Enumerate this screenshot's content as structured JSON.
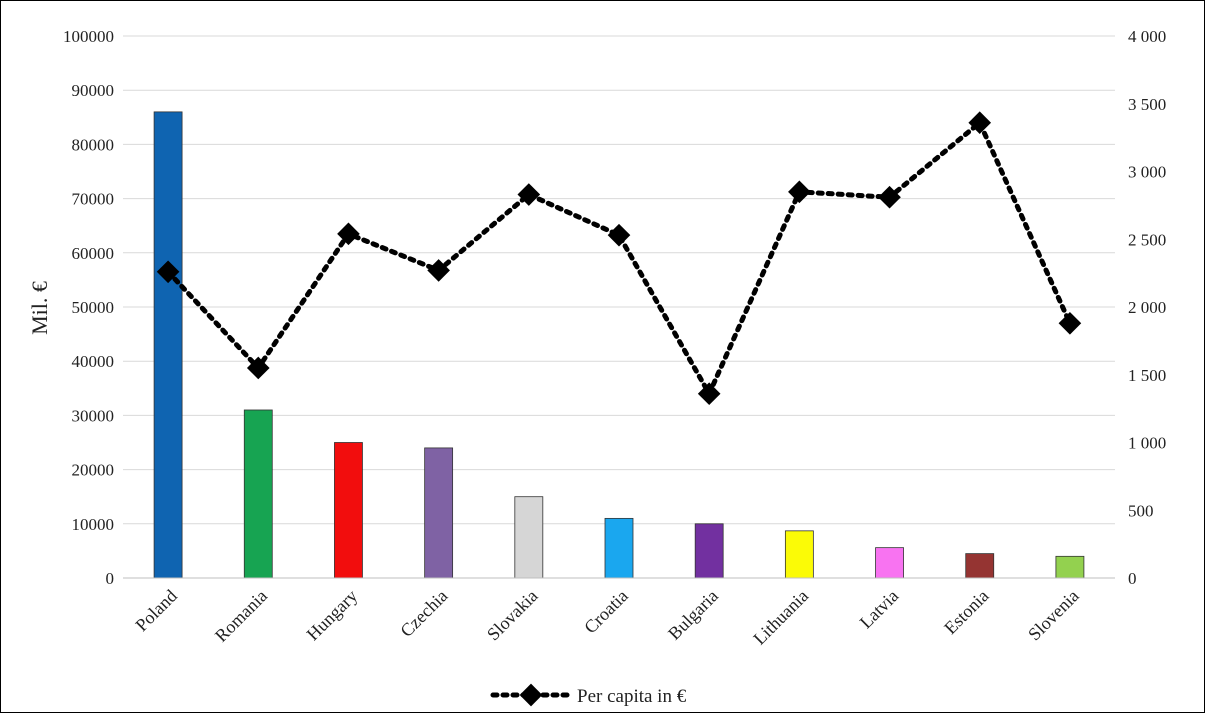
{
  "chart_data": {
    "type": "bar",
    "title": "",
    "xlabel": "",
    "ylabel": "Mil. €",
    "y2label": "",
    "ylim": [
      0,
      100000
    ],
    "y2lim": [
      0,
      4000
    ],
    "grid": true,
    "legend_position": "bottom",
    "categories": [
      "Poland",
      "Romania",
      "Hungary",
      "Czechia",
      "Slovakia",
      "Croatia",
      "Bulgaria",
      "Lithuania",
      "Latvia",
      "Estonia",
      "Slovenia"
    ],
    "y_ticks": [
      "0",
      "10000",
      "20000",
      "30000",
      "40000",
      "50000",
      "60000",
      "70000",
      "80000",
      "90000",
      "100000"
    ],
    "y2_ticks": [
      "0",
      "500",
      "1 000",
      "1 500",
      "2 000",
      "2 500",
      "3 000",
      "3 500",
      "4 000"
    ],
    "series": [
      {
        "type": "bar",
        "axis": "left",
        "values": [
          86000,
          31000,
          25000,
          24000,
          15000,
          11000,
          10000,
          8700,
          5600,
          4500,
          4000
        ],
        "colors": [
          "#0f64b1",
          "#17a452",
          "#f20d0d",
          "#7f62a4",
          "#d6d6d6",
          "#1aa7ef",
          "#7230a0",
          "#fbfb06",
          "#f873f1",
          "#953432",
          "#93d14f"
        ]
      },
      {
        "name": "Per capita in €",
        "type": "line",
        "axis": "right",
        "style": "dotted",
        "marker": "diamond",
        "color": "#000000",
        "values": [
          2260,
          1550,
          2540,
          2270,
          2830,
          2530,
          1360,
          2850,
          2810,
          3360,
          1880
        ]
      }
    ]
  }
}
